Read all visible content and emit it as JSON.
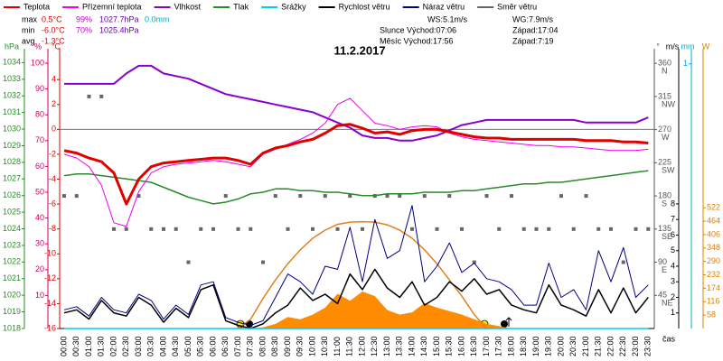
{
  "chart_data": {
    "type": "line",
    "title": "11.2.2017",
    "x_label": "čas",
    "categories": [
      "00:00",
      "00:30",
      "01:00",
      "01:30",
      "02:00",
      "02:30",
      "03:00",
      "03:30",
      "04:00",
      "04:30",
      "05:00",
      "05:30",
      "06:00",
      "06:30",
      "07:00",
      "07:30",
      "08:00",
      "08:30",
      "09:00",
      "09:30",
      "10:00",
      "10:30",
      "11:00",
      "11:30",
      "12:00",
      "12:30",
      "13:00",
      "13:30",
      "14:00",
      "14:30",
      "15:00",
      "15:30",
      "16:00",
      "16:30",
      "17:00",
      "17:30",
      "18:00",
      "18:30",
      "19:00",
      "19:30",
      "20:00",
      "20:30",
      "21:00",
      "21:30",
      "22:00",
      "22:30",
      "23:00",
      "23:30"
    ],
    "axes": {
      "hPa": {
        "label": "hPa",
        "color": "#2a8a2a",
        "ylim": [
          1018,
          1034.4
        ],
        "yticks": [
          1018,
          1019,
          1020,
          1021,
          1022,
          1023,
          1024,
          1025,
          1026,
          1027,
          1028,
          1029,
          1030,
          1031,
          1032,
          1033,
          1034
        ]
      },
      "pct": {
        "label": "%",
        "color": "#cc0066",
        "ylim": [
          -2.8,
          102.8
        ],
        "yticks": [
          10,
          20,
          30,
          40,
          50,
          60,
          70,
          80,
          90,
          100
        ]
      },
      "temp": {
        "label": "°C",
        "color": "#e00000",
        "ylim": [
          -16,
          5.9
        ],
        "yticks": [
          -16,
          -14,
          -12,
          -10,
          -8,
          -6,
          -4,
          -2,
          0,
          2,
          4
        ],
        "zero_line": true
      },
      "dir": {
        "label": "°",
        "color": "#555555",
        "ylim": [
          0,
          370
        ],
        "yticks": [
          360,
          315,
          270,
          225,
          180,
          135,
          90,
          45
        ],
        "compass": [
          "N",
          "NW",
          "W",
          "SW",
          "S",
          "SE",
          "E",
          "NE"
        ]
      },
      "ms": {
        "label": "m/s",
        "color": "#000000",
        "ylim": [
          0,
          17.5
        ],
        "yticks": [
          1,
          2,
          3,
          4,
          5,
          6,
          7,
          8
        ]
      },
      "mm": {
        "label": "mm",
        "color": "#00aacc",
        "ylim": [
          0,
          1.03
        ],
        "yticks": [
          1
        ]
      },
      "W": {
        "label": "W",
        "color": "#e08000",
        "ylim": [
          0,
          1178
        ],
        "yticks": [
          58,
          116,
          174,
          232,
          290,
          348,
          406,
          464,
          522
        ]
      }
    },
    "series": [
      {
        "axis": "W",
        "style": "area",
        "color": "#ff8c00",
        "values": [
          0,
          0,
          0,
          0,
          0,
          0,
          0,
          0,
          0,
          0,
          0,
          0,
          0,
          0,
          0,
          0,
          5,
          20,
          50,
          40,
          60,
          90,
          150,
          120,
          160,
          140,
          80,
          60,
          70,
          110,
          90,
          75,
          60,
          40,
          20,
          10,
          0,
          0,
          0,
          0,
          0,
          0,
          0,
          0,
          0,
          0,
          0,
          0
        ]
      },
      {
        "axis": "W",
        "style": "line",
        "line_width": 1.5,
        "color": "#e08020",
        "values": [
          null,
          null,
          null,
          null,
          null,
          null,
          null,
          null,
          null,
          null,
          null,
          null,
          null,
          null,
          0,
          40,
          130,
          210,
          280,
          340,
          390,
          425,
          450,
          460,
          462,
          460,
          448,
          425,
          390,
          340,
          280,
          210,
          140,
          60,
          0,
          null,
          null,
          null,
          null,
          null,
          null,
          null,
          null,
          null,
          null,
          null,
          null,
          null
        ]
      },
      {
        "name": "Teplota",
        "axis": "temp",
        "style": "line",
        "line_width": 3,
        "color": "#e00000",
        "values": [
          -1.7,
          -1.9,
          -2.3,
          -2.6,
          -3.5,
          -6.0,
          -4.0,
          -3.0,
          -2.7,
          -2.6,
          -2.5,
          -2.4,
          -2.3,
          -2.3,
          -2.5,
          -2.8,
          -1.9,
          -1.5,
          -1.3,
          -1.0,
          -0.8,
          -0.3,
          0.3,
          0.4,
          0.1,
          -0.3,
          -0.2,
          -0.4,
          -0.1,
          0.0,
          0.0,
          -0.2,
          -0.4,
          -0.6,
          -0.7,
          -0.7,
          -0.8,
          -0.8,
          -0.8,
          -0.8,
          -0.8,
          -0.8,
          -0.9,
          -0.9,
          -0.9,
          -1.0,
          -1.0,
          -1.1
        ]
      },
      {
        "name": "Přízemní teplota",
        "axis": "temp",
        "style": "line",
        "line_width": 1,
        "color": "#ee00ee",
        "values": [
          -2.0,
          -2.3,
          -3.0,
          -4.5,
          -7.5,
          -7.8,
          -5.0,
          -3.5,
          -3.0,
          -2.8,
          -2.7,
          -2.6,
          -2.5,
          -2.6,
          -2.8,
          -3.0,
          -2.0,
          -1.6,
          -1.2,
          -0.8,
          -0.3,
          0.5,
          2.0,
          2.5,
          1.5,
          0.5,
          0.3,
          0.0,
          0.2,
          0.3,
          0.2,
          -0.3,
          -0.6,
          -0.8,
          -0.9,
          -1.0,
          -1.1,
          -1.2,
          -1.3,
          -1.3,
          -1.4,
          -1.4,
          -1.5,
          -1.6,
          -1.7,
          -1.7,
          -1.7,
          -1.6
        ]
      },
      {
        "name": "Vlhkost",
        "axis": "pct",
        "style": "line",
        "line_width": 2,
        "color": "#8800cc",
        "values": [
          92,
          92,
          92,
          92,
          92,
          96,
          99,
          99,
          96,
          95,
          94,
          92,
          90,
          88,
          87,
          86,
          85,
          84,
          83,
          82,
          81,
          79,
          77,
          75,
          72,
          71,
          71,
          70,
          70,
          71,
          72,
          74,
          76,
          77,
          78,
          78,
          78,
          78,
          78,
          78,
          78,
          78,
          77,
          77,
          77,
          77,
          77,
          79
        ]
      },
      {
        "name": "Tlak",
        "axis": "hPa",
        "style": "line",
        "line_width": 1.5,
        "color": "#2a8a2a",
        "values": [
          1027.2,
          1027.3,
          1027.3,
          1027.2,
          1027.1,
          1027.0,
          1026.9,
          1026.8,
          1026.5,
          1026.2,
          1025.9,
          1025.7,
          1025.5,
          1025.6,
          1025.8,
          1026.1,
          1026.2,
          1026.4,
          1026.4,
          1026.3,
          1026.3,
          1026.2,
          1026.2,
          1026.1,
          1026.0,
          1026.0,
          1026.1,
          1026.1,
          1026.1,
          1026.2,
          1026.2,
          1026.2,
          1026.3,
          1026.3,
          1026.4,
          1026.5,
          1026.6,
          1026.7,
          1026.7,
          1026.8,
          1026.8,
          1026.9,
          1027.0,
          1027.1,
          1027.2,
          1027.3,
          1027.4,
          1027.5
        ]
      },
      {
        "name": "Srážky",
        "axis": "mm",
        "style": "line",
        "line_width": 1.5,
        "color": "#00ccee",
        "values": [
          0,
          0,
          0,
          0,
          0,
          0,
          0,
          0,
          0,
          0,
          0,
          0,
          0,
          0,
          0,
          0,
          0,
          0,
          0,
          0,
          0,
          0,
          0,
          0,
          0,
          0,
          0,
          0,
          0,
          0,
          0,
          0,
          0,
          0,
          0,
          0,
          0,
          0,
          0,
          0,
          0,
          0,
          0,
          0,
          0,
          0,
          0,
          0
        ]
      },
      {
        "name": "Rychlost větru",
        "axis": "ms",
        "style": "line",
        "line_width": 1.5,
        "color": "#000000",
        "values": [
          1.0,
          1.2,
          0.6,
          1.8,
          1.0,
          0.8,
          2.0,
          1.5,
          0.4,
          1.3,
          0.7,
          2.5,
          2.8,
          0.5,
          0.2,
          0.0,
          0.3,
          1.0,
          1.5,
          2.6,
          1.8,
          2.2,
          1.6,
          3.5,
          2.5,
          3.8,
          2.6,
          2.0,
          3.0,
          1.5,
          2.0,
          3.0,
          2.4,
          3.2,
          2.2,
          2.5,
          1.5,
          1.2,
          1.0,
          2.8,
          1.5,
          1.2,
          0.8,
          2.5,
          1.0,
          2.6,
          1.0,
          2.0
        ]
      },
      {
        "name": "Náraz větru",
        "axis": "ms",
        "style": "line",
        "line_width": 1,
        "color": "#000080",
        "values": [
          1.2,
          1.4,
          0.8,
          2.0,
          1.2,
          1.0,
          2.2,
          1.8,
          0.6,
          1.5,
          0.9,
          2.8,
          3.0,
          0.7,
          0.4,
          0.2,
          0.5,
          2.0,
          3.5,
          3.0,
          2.2,
          4.0,
          3.8,
          6.5,
          3.0,
          7.0,
          4.5,
          5.0,
          7.9,
          3.0,
          4.0,
          5.5,
          3.6,
          4.2,
          3.2,
          3.0,
          2.5,
          1.5,
          1.5,
          4.2,
          2.0,
          2.5,
          1.2,
          5.0,
          3.0,
          5.2,
          2.0,
          2.8
        ]
      },
      {
        "name": "Směr větru",
        "axis": "dir",
        "style": "dots",
        "color": "#666666",
        "values": [
          180,
          180,
          315,
          315,
          135,
          135,
          180,
          135,
          135,
          135,
          90,
          135,
          135,
          180,
          135,
          135,
          90,
          180,
          135,
          180,
          135,
          180,
          135,
          180,
          135,
          180,
          180,
          180,
          135,
          180,
          135,
          180,
          135,
          90,
          180,
          135,
          180,
          135,
          135,
          135,
          180,
          135,
          180,
          135,
          135,
          90,
          135,
          135
        ]
      }
    ],
    "stats": [
      {
        "label": "max",
        "items": [
          "0.5°C",
          "99%",
          "1027.7hPa",
          "0.0mm"
        ]
      },
      {
        "label": "min",
        "items": [
          "-6.0°C",
          "70%",
          "1025.4hPa"
        ]
      },
      {
        "label": "avg",
        "items": [
          "-1.3°C"
        ]
      }
    ],
    "stats_colors": [
      "#e00000",
      "#cc00cc",
      "#6600aa",
      "#00aacc"
    ],
    "info": [
      "WS:5.1m/s",
      "WG:7.9m/s",
      "Slunce Východ:07:06",
      "Západ:17:04",
      "Měsíc Východ:17:56",
      "Západ:7:19"
    ]
  }
}
